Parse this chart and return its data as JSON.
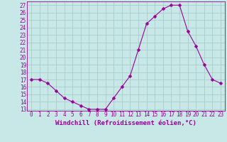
{
  "x": [
    0,
    1,
    2,
    3,
    4,
    5,
    6,
    7,
    8,
    9,
    10,
    11,
    12,
    13,
    14,
    15,
    16,
    17,
    18,
    19,
    20,
    21,
    22,
    23
  ],
  "y": [
    17,
    17,
    16.5,
    15.5,
    14.5,
    14,
    13.5,
    13,
    13,
    13,
    14.5,
    16,
    17.5,
    21,
    24.5,
    25.5,
    26.5,
    27,
    27,
    23.5,
    21.5,
    19,
    17,
    16.5
  ],
  "line_color": "#990099",
  "marker": "D",
  "marker_size": 2.5,
  "bg_color": "#c8e8e8",
  "grid_color": "#aacccc",
  "xlabel": "Windchill (Refroidissement éolien,°C)",
  "xlabel_color": "#990099",
  "xlabel_fontsize": 6.5,
  "tick_fontsize": 5.5,
  "tick_color": "#990099",
  "ylim": [
    12.8,
    27.5
  ],
  "xlim": [
    -0.5,
    23.5
  ],
  "yticks": [
    13,
    14,
    15,
    16,
    17,
    18,
    19,
    20,
    21,
    22,
    23,
    24,
    25,
    26,
    27
  ],
  "xticks": [
    0,
    1,
    2,
    3,
    4,
    5,
    6,
    7,
    8,
    9,
    10,
    11,
    12,
    13,
    14,
    15,
    16,
    17,
    18,
    19,
    20,
    21,
    22,
    23
  ]
}
